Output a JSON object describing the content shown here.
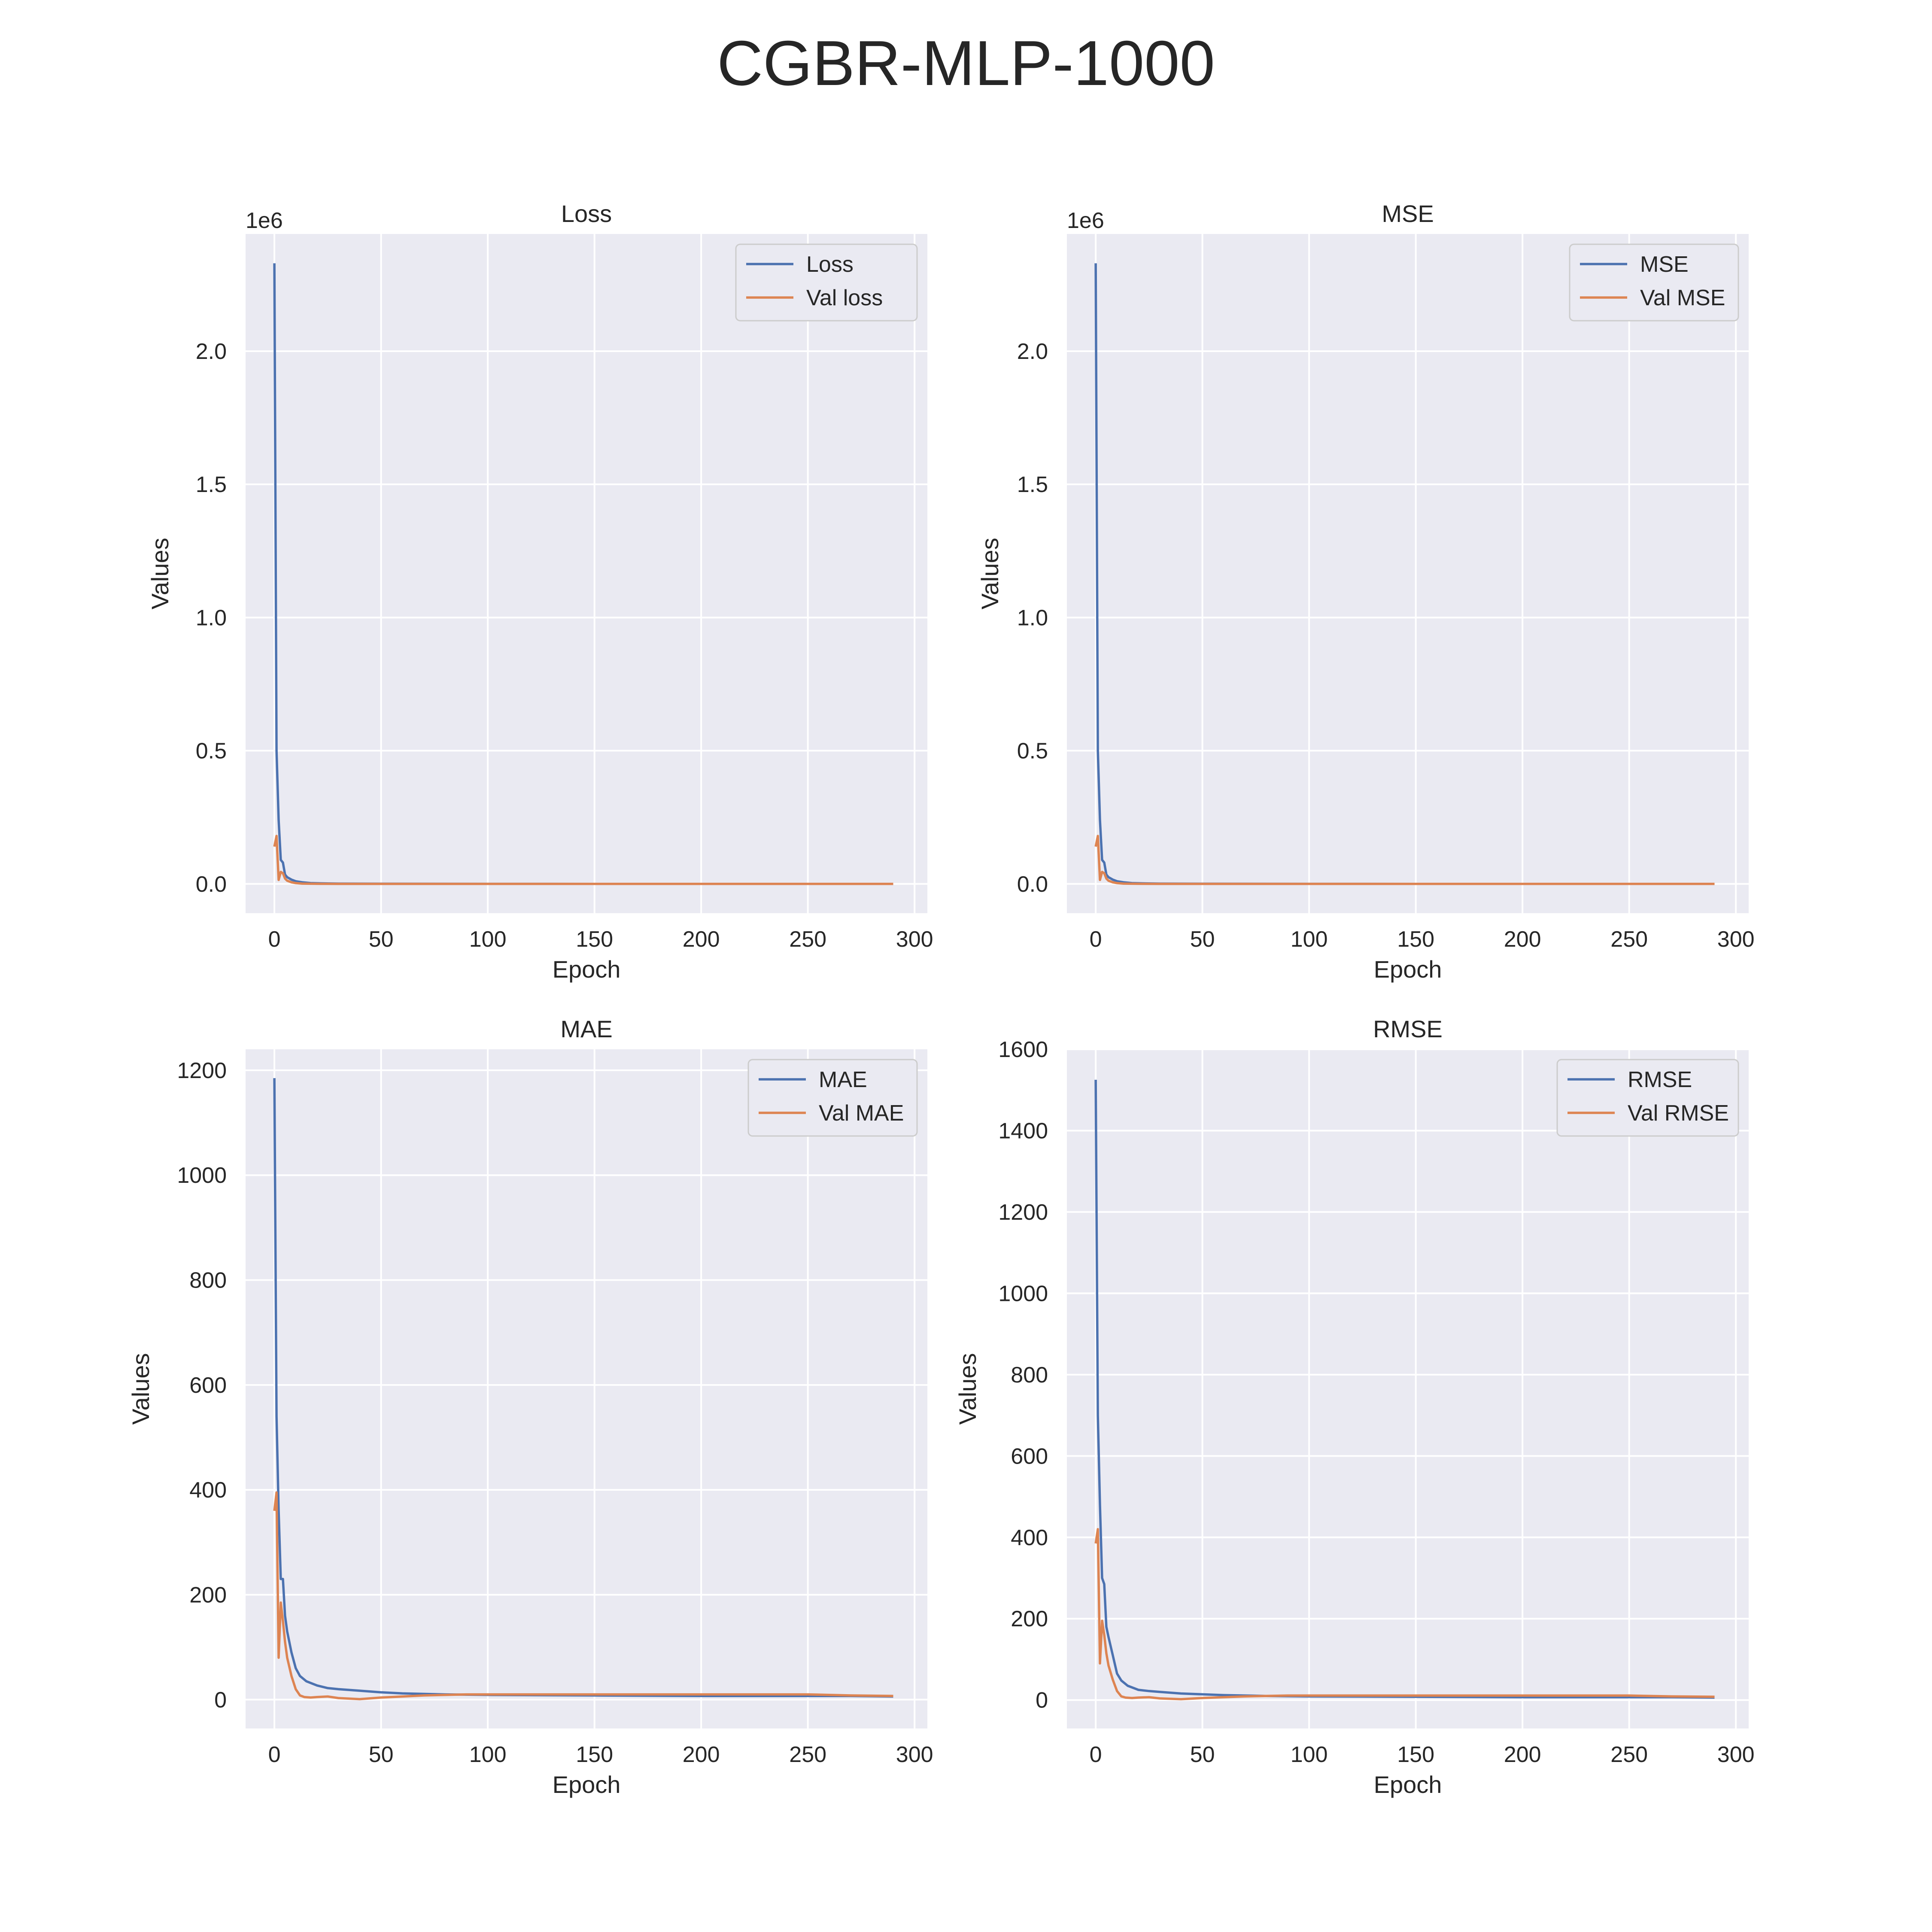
{
  "figure_title": "CGBR-MLP-1000",
  "colors": {
    "train": "#4c72b0",
    "val": "#dd8452",
    "panel_bg": "#eaeaf2",
    "grid": "#ffffff",
    "text": "#262626"
  },
  "chart_data": [
    {
      "type": "line",
      "title": "Loss",
      "xlabel": "Epoch",
      "ylabel": "Values",
      "offset_label": "1e6",
      "xlim": [
        -13.5,
        306
      ],
      "ylim": [
        -0.11,
        2.44
      ],
      "xticks": [
        0,
        50,
        100,
        150,
        200,
        250,
        300
      ],
      "xtick_labels": [
        "0",
        "50",
        "100",
        "150",
        "200",
        "250",
        "300"
      ],
      "yticks": [
        0,
        0.5,
        1.0,
        1.5,
        2.0
      ],
      "ytick_labels": [
        "0.0",
        "0.5",
        "1.0",
        "1.5",
        "2.0"
      ],
      "grid": true,
      "legend_position": "top-right",
      "series": [
        {
          "name": "Loss",
          "color_key": "train",
          "x": [
            0,
            1,
            2,
            3,
            4,
            5,
            6,
            8,
            10,
            13,
            17,
            22,
            30,
            50,
            100,
            150,
            200,
            250,
            290
          ],
          "y": [
            2.33,
            0.5,
            0.24,
            0.09,
            0.08,
            0.035,
            0.025,
            0.016,
            0.01,
            0.006,
            0.003,
            0.002,
            0.001,
            0.0005,
            0.0002,
            0.0001,
            0.0001,
            0.0001,
            0.0001
          ]
        },
        {
          "name": "Val loss",
          "color_key": "val",
          "x": [
            0,
            1,
            2,
            3,
            4,
            5,
            6,
            8,
            10,
            13,
            17,
            22,
            30,
            50,
            100,
            150,
            200,
            250,
            290
          ],
          "y": [
            0.14,
            0.18,
            0.015,
            0.045,
            0.04,
            0.02,
            0.012,
            0.006,
            0.003,
            0.001,
            0.0005,
            0.0002,
            0.0001,
            0.0001,
            0.0001,
            0.0001,
            0.0001,
            0.0001,
            0.0001
          ]
        }
      ]
    },
    {
      "type": "line",
      "title": "MSE",
      "xlabel": "Epoch",
      "ylabel": "Values",
      "offset_label": "1e6",
      "xlim": [
        -13.5,
        306
      ],
      "ylim": [
        -0.11,
        2.44
      ],
      "xticks": [
        0,
        50,
        100,
        150,
        200,
        250,
        300
      ],
      "xtick_labels": [
        "0",
        "50",
        "100",
        "150",
        "200",
        "250",
        "300"
      ],
      "yticks": [
        0,
        0.5,
        1.0,
        1.5,
        2.0
      ],
      "ytick_labels": [
        "0.0",
        "0.5",
        "1.0",
        "1.5",
        "2.0"
      ],
      "grid": true,
      "legend_position": "top-right",
      "series": [
        {
          "name": "MSE",
          "color_key": "train",
          "x": [
            0,
            1,
            2,
            3,
            4,
            5,
            6,
            8,
            10,
            13,
            17,
            22,
            30,
            50,
            100,
            150,
            200,
            250,
            290
          ],
          "y": [
            2.33,
            0.5,
            0.24,
            0.09,
            0.08,
            0.035,
            0.025,
            0.016,
            0.01,
            0.006,
            0.003,
            0.002,
            0.001,
            0.0005,
            0.0002,
            0.0001,
            0.0001,
            0.0001,
            0.0001
          ]
        },
        {
          "name": "Val MSE",
          "color_key": "val",
          "x": [
            0,
            1,
            2,
            3,
            4,
            5,
            6,
            8,
            10,
            13,
            17,
            22,
            30,
            50,
            100,
            150,
            200,
            250,
            290
          ],
          "y": [
            0.14,
            0.18,
            0.015,
            0.045,
            0.04,
            0.02,
            0.012,
            0.006,
            0.003,
            0.001,
            0.0005,
            0.0002,
            0.0001,
            0.0001,
            0.0001,
            0.0001,
            0.0001,
            0.0001,
            0.0001
          ]
        }
      ]
    },
    {
      "type": "line",
      "title": "MAE",
      "xlabel": "Epoch",
      "ylabel": "Values",
      "offset_label": "",
      "xlim": [
        -13.5,
        306
      ],
      "ylim": [
        -55,
        1240
      ],
      "xticks": [
        0,
        50,
        100,
        150,
        200,
        250,
        300
      ],
      "xtick_labels": [
        "0",
        "50",
        "100",
        "150",
        "200",
        "250",
        "300"
      ],
      "yticks": [
        0,
        200,
        400,
        600,
        800,
        1000,
        1200
      ],
      "ytick_labels": [
        "0",
        "200",
        "400",
        "600",
        "800",
        "1000",
        "1200"
      ],
      "grid": true,
      "legend_position": "top-right",
      "series": [
        {
          "name": "MAE",
          "color_key": "train",
          "x": [
            0,
            1,
            2,
            3,
            4,
            5,
            6,
            8,
            10,
            12,
            15,
            20,
            25,
            30,
            40,
            50,
            60,
            80,
            100,
            150,
            200,
            250,
            270,
            290
          ],
          "y": [
            1185,
            540,
            360,
            230,
            230,
            160,
            130,
            90,
            60,
            45,
            35,
            27,
            22,
            20,
            17,
            14,
            12,
            10,
            9,
            8,
            7,
            7,
            7,
            6
          ]
        },
        {
          "name": "Val MAE",
          "color_key": "val",
          "x": [
            0,
            1,
            2,
            3,
            4,
            5,
            6,
            8,
            10,
            12,
            14,
            17,
            20,
            25,
            30,
            40,
            50,
            70,
            90,
            120,
            150,
            200,
            250,
            270,
            290
          ],
          "y": [
            360,
            395,
            80,
            185,
            150,
            110,
            80,
            45,
            20,
            8,
            5,
            4,
            5,
            6,
            3,
            1,
            4,
            8,
            10,
            10,
            10,
            10,
            10,
            8,
            7
          ]
        }
      ]
    },
    {
      "type": "line",
      "title": "RMSE",
      "xlabel": "Epoch",
      "ylabel": "Values",
      "offset_label": "",
      "xlim": [
        -13.5,
        306
      ],
      "ylim": [
        -70,
        1600
      ],
      "xticks": [
        0,
        50,
        100,
        150,
        200,
        250,
        300
      ],
      "xtick_labels": [
        "0",
        "50",
        "100",
        "150",
        "200",
        "250",
        "300"
      ],
      "yticks": [
        0,
        200,
        400,
        600,
        800,
        1000,
        1200,
        1400,
        1600
      ],
      "ytick_labels": [
        "0",
        "200",
        "400",
        "600",
        "800",
        "1000",
        "1200",
        "1400",
        "1600"
      ],
      "grid": true,
      "legend_position": "top-right",
      "series": [
        {
          "name": "RMSE",
          "color_key": "train",
          "x": [
            0,
            1,
            2,
            3,
            4,
            5,
            6,
            8,
            10,
            12,
            15,
            20,
            25,
            30,
            40,
            50,
            60,
            80,
            100,
            150,
            200,
            250,
            270,
            290
          ],
          "y": [
            1525,
            700,
            480,
            300,
            285,
            180,
            155,
            110,
            65,
            48,
            35,
            25,
            22,
            20,
            16,
            14,
            12,
            10,
            9,
            8,
            7,
            7,
            7,
            6
          ]
        },
        {
          "name": "Val RMSE",
          "color_key": "val",
          "x": [
            0,
            1,
            2,
            3,
            4,
            5,
            6,
            8,
            10,
            12,
            14,
            17,
            20,
            25,
            30,
            40,
            50,
            70,
            90,
            120,
            150,
            200,
            250,
            270,
            290
          ],
          "y": [
            385,
            420,
            90,
            195,
            160,
            115,
            85,
            50,
            22,
            9,
            6,
            5,
            6,
            7,
            4,
            2,
            5,
            9,
            11,
            11,
            11,
            11,
            11,
            9,
            8
          ]
        }
      ]
    }
  ]
}
